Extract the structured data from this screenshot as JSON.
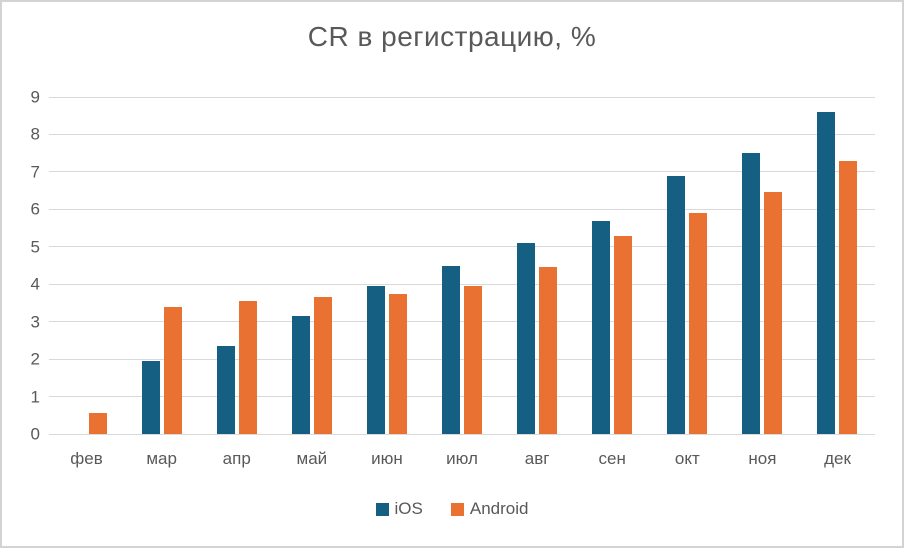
{
  "chart_data": {
    "type": "bar",
    "title": "CR в регистрацию, %",
    "categories": [
      "фев",
      "мар",
      "апр",
      "май",
      "июн",
      "июл",
      "авг",
      "сен",
      "окт",
      "ноя",
      "дек"
    ],
    "series": [
      {
        "name": "iOS",
        "color": "#156082",
        "values": [
          0,
          1.95,
          2.35,
          3.15,
          3.95,
          4.5,
          5.1,
          5.7,
          6.9,
          7.5,
          8.6
        ]
      },
      {
        "name": "Android",
        "color": "#E97132",
        "values": [
          0.55,
          3.4,
          3.55,
          3.65,
          3.75,
          3.95,
          4.45,
          5.3,
          5.9,
          6.45,
          7.3
        ]
      }
    ],
    "xlabel": "",
    "ylabel": "",
    "ylim": [
      0,
      9
    ],
    "y_tick_step": 1,
    "grid": true,
    "legend_position": "bottom"
  },
  "colors": {
    "text": "#595959",
    "gridline": "#d9d9d9",
    "frame_border": "#d3d3d3",
    "background": "#ffffff"
  }
}
